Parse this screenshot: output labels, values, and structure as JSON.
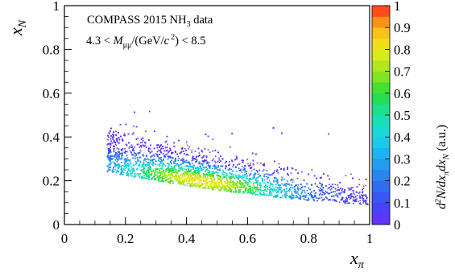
{
  "chart_data": {
    "type": "heatmap",
    "title": "",
    "annotations": {
      "line1_prefix": "COMPASS 2015 NH",
      "line1_sub": "3",
      "line1_suffix": " data",
      "line2_prefix": "4.3 < ",
      "line2_var": "M",
      "line2_sub": "μμ",
      "line2_mid": "/(GeV/",
      "line2_c": "c",
      "line2_sup": "2",
      "line2_suffix": ") < 8.5"
    },
    "xlabel": {
      "main": "x",
      "sub": "π"
    },
    "ylabel": {
      "main": "x",
      "sub": "N"
    },
    "xlim": [
      0,
      1
    ],
    "ylim": [
      0,
      1
    ],
    "x_ticks": [
      {
        "value": 0,
        "label": "0"
      },
      {
        "value": 0.2,
        "label": "0.2"
      },
      {
        "value": 0.4,
        "label": "0.4"
      },
      {
        "value": 0.6,
        "label": "0.6"
      },
      {
        "value": 0.8,
        "label": "0.8"
      },
      {
        "value": 1,
        "label": "1"
      }
    ],
    "y_ticks": [
      {
        "value": 0,
        "label": "0"
      },
      {
        "value": 0.2,
        "label": "0.2"
      },
      {
        "value": 0.4,
        "label": "0.4"
      },
      {
        "value": 0.6,
        "label": "0.6"
      },
      {
        "value": 0.8,
        "label": "0.8"
      },
      {
        "value": 1,
        "label": "1"
      }
    ],
    "colorbar": {
      "range": [
        0,
        1
      ],
      "unit": "(a.u.)",
      "title_text": "d2N/dxπdxN",
      "ticks": [
        {
          "value": 0,
          "label": "0"
        },
        {
          "value": 0.1,
          "label": "0.1"
        },
        {
          "value": 0.2,
          "label": "0.2"
        },
        {
          "value": 0.3,
          "label": "0.3"
        },
        {
          "value": 0.4,
          "label": "0.4"
        },
        {
          "value": 0.5,
          "label": "0.5"
        },
        {
          "value": 0.6,
          "label": "0.6"
        },
        {
          "value": 0.7,
          "label": "0.7"
        },
        {
          "value": 0.8,
          "label": "0.8"
        },
        {
          "value": 0.9,
          "label": "0.9"
        },
        {
          "value": 1,
          "label": "1"
        }
      ],
      "colors": [
        "#6a2cff",
        "#3d4af5",
        "#2d78f0",
        "#1ea8f0",
        "#17d6e6",
        "#18e2a6",
        "#27dc36",
        "#9ee61c",
        "#ecec16",
        "#ffb21a",
        "#ff2a1a"
      ]
    },
    "grid": false,
    "distribution": {
      "description": "Dense point cloud of events: band from x_pi ~0.15 to ~1.0; density concentrated near low x_N, peak near x_pi 0.45, x_N 0.15",
      "x_range": [
        0.13,
        1.0
      ],
      "x_N_max_observed": 0.55,
      "peak": {
        "x": 0.45,
        "y": 0.15,
        "z": 0.8
      }
    }
  }
}
